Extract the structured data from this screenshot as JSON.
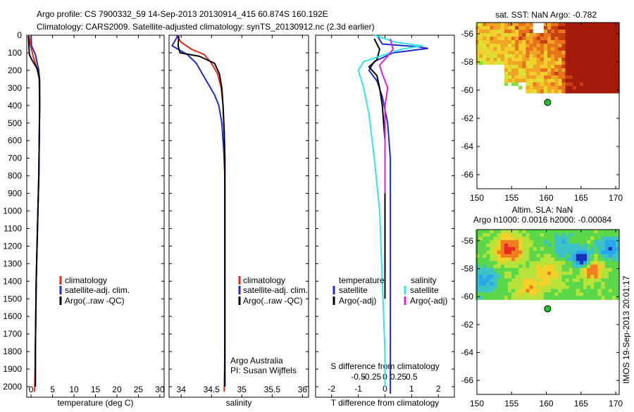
{
  "header": {
    "line1": "Argo profile: CS 7900332_59 14-Sep-2013 20130914_415 60.874S 160.192E",
    "line2": "Climatology: CARS2009. Satellite-adjusted climatology: synTS_20130912.nc (2.3d earlier)"
  },
  "side_stamp": "IMOS 19-Sep-2013 20:01:17",
  "legend_labels": {
    "climatology": "climatology",
    "satellite_adj": "satellite-adj. clim.",
    "argo_raw": "Argo(..raw -QC)",
    "temperature": "temperature",
    "salinity": "salinity",
    "satellite": "satellite",
    "argo_adj": "Argo(-adj)"
  },
  "colors": {
    "climatology": "#e8281e",
    "satellite_adj": "#1f2ad6",
    "argo": "#000000",
    "temp_diff_satellite": "#1f2ad6",
    "sal_diff_satellite": "#33e6e6",
    "sal_diff_argo": "#e020e0"
  },
  "annotations": {
    "argo_australia": "Argo Australia",
    "pi": "PI: Susan Wijffels"
  },
  "chart_data": [
    {
      "id": "temperature",
      "type": "line",
      "xlabel": "temperature (deg C)",
      "ylabel": "",
      "xlim": [
        -1,
        31
      ],
      "ylim": [
        2060,
        0
      ],
      "xticks": [
        0,
        5,
        10,
        15,
        20,
        25,
        30
      ],
      "xtick_labels": [
        "0",
        "5",
        "10",
        "15",
        "20",
        "25",
        "30"
      ],
      "yticks": [
        0,
        100,
        200,
        300,
        400,
        500,
        600,
        700,
        800,
        900,
        1000,
        1100,
        1200,
        1300,
        1400,
        1500,
        1600,
        1700,
        1800,
        1900,
        2000
      ],
      "ytick_labels": [
        "0",
        "100",
        "200",
        "300",
        "400",
        "500",
        "600",
        "700",
        "800",
        "900",
        "1000",
        "1100",
        "1200",
        "1300",
        "1400",
        "1500",
        "1600",
        "1700",
        "1800",
        "1900",
        "2000"
      ],
      "series": [
        {
          "name": "climatology",
          "key": "climatology",
          "x": [
            -0.5,
            -0.2,
            0.5,
            1.5,
            2.0,
            2.0,
            1.9,
            1.8,
            1.6,
            1.4,
            1.2,
            1.1,
            1.0,
            0.9,
            0.8
          ],
          "y": [
            0,
            50,
            120,
            200,
            260,
            400,
            600,
            800,
            1000,
            1200,
            1400,
            1600,
            1800,
            1950,
            2030
          ]
        },
        {
          "name": "satellite-adj. clim.",
          "key": "satellite_adj",
          "x": [
            0.0,
            0.1,
            1.0,
            1.8,
            2.0,
            2.0,
            1.9,
            1.8,
            1.6,
            1.4,
            1.2,
            1.1,
            1.0,
            1.0
          ],
          "y": [
            0,
            60,
            110,
            200,
            260,
            400,
            600,
            800,
            1000,
            1200,
            1400,
            1600,
            1800,
            2000
          ]
        },
        {
          "name": "Argo(..raw -QC)",
          "key": "argo",
          "x": [
            -0.6,
            -0.5,
            -0.4,
            0.2,
            1.4,
            1.9,
            2.0,
            1.9,
            1.8,
            1.6,
            1.4,
            1.2,
            1.1,
            1.0,
            1.0
          ],
          "y": [
            5,
            60,
            110,
            140,
            190,
            240,
            400,
            600,
            800,
            1000,
            1200,
            1400,
            1600,
            1800,
            2000
          ]
        }
      ]
    },
    {
      "id": "salinity",
      "type": "line",
      "xlabel": "salinity",
      "ylabel": "",
      "xlim": [
        33.8,
        36.1
      ],
      "ylim": [
        2060,
        0
      ],
      "xticks": [
        34,
        34.5,
        35,
        35.5,
        36
      ],
      "xtick_labels": [
        "34",
        "34.5",
        "35",
        "35.5",
        "36"
      ],
      "yticks": [
        0,
        100,
        200,
        300,
        400,
        500,
        600,
        700,
        800,
        900,
        1000,
        1100,
        1200,
        1300,
        1400,
        1500,
        1600,
        1700,
        1800,
        1900,
        2000
      ],
      "series": [
        {
          "name": "climatology",
          "key": "climatology",
          "x": [
            33.92,
            34.0,
            34.17,
            34.38,
            34.5,
            34.6,
            34.66,
            34.69,
            34.71,
            34.72,
            34.72,
            34.72,
            34.72,
            34.72,
            34.71
          ],
          "y": [
            0,
            40,
            80,
            110,
            160,
            220,
            300,
            400,
            550,
            700,
            900,
            1200,
            1500,
            1800,
            2030
          ]
        },
        {
          "name": "satellite-adj. clim.",
          "key": "satellite_adj",
          "x": [
            33.95,
            33.85,
            34.1,
            34.25,
            34.35,
            34.45,
            34.55,
            34.62,
            34.67,
            34.7,
            34.72,
            34.72,
            34.72,
            34.72,
            34.72
          ],
          "y": [
            0,
            60,
            110,
            160,
            220,
            280,
            340,
            400,
            500,
            650,
            800,
            1100,
            1400,
            1700,
            2000
          ]
        },
        {
          "name": "Argo(..raw -QC)",
          "key": "argo",
          "x": [
            33.96,
            33.95,
            33.98,
            34.3,
            34.55,
            34.63,
            34.67,
            34.69,
            34.71,
            34.72,
            34.72,
            34.72,
            34.72,
            34.72
          ],
          "y": [
            5,
            60,
            100,
            120,
            160,
            220,
            300,
            400,
            550,
            700,
            900,
            1200,
            1500,
            2000
          ]
        }
      ]
    },
    {
      "id": "difference",
      "type": "line",
      "xlabel": "T difference from climatology",
      "x2label": "S difference from climatology",
      "ylabel": "",
      "xlim": [
        -2.6,
        2.6
      ],
      "ylim": [
        2060,
        0
      ],
      "xticks": [
        -2,
        -1,
        0,
        1,
        2
      ],
      "xtick_labels": [
        "-2",
        "-1",
        "0",
        "1",
        "2"
      ],
      "x2ticks": [
        -1,
        -0.5,
        0,
        0.5,
        1
      ],
      "x2tick_labels": [
        "-0.5",
        "-0.25",
        "0",
        "0.25",
        "0.5"
      ],
      "yticks": [
        0,
        100,
        200,
        300,
        400,
        500,
        600,
        700,
        800,
        900,
        1000,
        1100,
        1200,
        1300,
        1400,
        1500,
        1600,
        1700,
        1800,
        1900,
        2000
      ],
      "series": [
        {
          "name": "temperature satellite",
          "key": "temp_diff_satellite",
          "x": [
            -0.3,
            -0.1,
            1.2,
            1.6,
            0.3,
            -0.4,
            -0.6,
            -0.3,
            -0.1,
            0.1,
            0.2,
            0.2,
            0.2,
            0.2,
            0.2,
            0.2,
            0.2
          ],
          "y": [
            0,
            50,
            65,
            75,
            100,
            150,
            200,
            260,
            350,
            500,
            700,
            900,
            1200,
            1500,
            1800,
            2000,
            2040
          ]
        },
        {
          "name": "temperature Argo(-adj)",
          "key": "argo",
          "x": [
            -0.4,
            -0.2,
            -0.3,
            -0.6,
            -0.3,
            -0.2,
            -0.1,
            0.0,
            0.0,
            0.0
          ],
          "y": [
            20,
            80,
            140,
            180,
            230,
            300,
            400,
            600,
            1000,
            1500
          ]
        },
        {
          "name": "salinity satellite",
          "key": "sal_diff_satellite",
          "x": [
            -0.4,
            0.4,
            1.4,
            0.6,
            -0.8,
            -1.0,
            -0.8,
            -0.6,
            -0.4,
            -0.2,
            -0.1,
            0.0,
            0.0
          ],
          "y": [
            0,
            40,
            60,
            80,
            150,
            200,
            300,
            450,
            700,
            1000,
            1400,
            1800,
            2000
          ]
        },
        {
          "name": "salinity Argo(-adj)",
          "key": "sal_diff_argo",
          "x": [
            0.2,
            0.3,
            0.1,
            -0.2,
            -0.1,
            0.1,
            0.0,
            0.0,
            0.0
          ],
          "y": [
            20,
            80,
            120,
            170,
            220,
            300,
            400,
            600,
            900
          ]
        }
      ]
    },
    {
      "id": "sst-map",
      "type": "heatmap",
      "title": "sat. SST: NaN Argo: -0.782",
      "xlim": [
        150,
        170.5
      ],
      "ylim": [
        -67,
        -55.2
      ],
      "xticks": [
        150,
        155,
        160,
        165,
        170
      ],
      "xtick_labels": [
        "150",
        "155",
        "160",
        "165",
        "170"
      ],
      "yticks": [
        -56,
        -58,
        -60,
        -62,
        -64,
        -66
      ],
      "ytick_labels": [
        "-56",
        "-58",
        "-60",
        "-62",
        "-64",
        "-66"
      ],
      "data_extent": {
        "lon": [
          149.8,
          170.5
        ],
        "lat": [
          -60.2,
          -55.2
        ]
      },
      "marker": {
        "lon": 160.19,
        "lat": -60.87
      }
    },
    {
      "id": "sla-map",
      "type": "heatmap",
      "title": "Altim. SLA: NaN",
      "subtitle": "Argo h1000: 0.0016 h2000: -0.00084",
      "xlim": [
        150,
        170.5
      ],
      "ylim": [
        -67,
        -55.2
      ],
      "xticks": [
        150,
        155,
        160,
        165,
        170
      ],
      "xtick_labels": [
        "150",
        "155",
        "160",
        "165",
        "170"
      ],
      "yticks": [
        -56,
        -58,
        -60,
        -62,
        -64,
        -66
      ],
      "ytick_labels": [
        "-56",
        "-58",
        "-60",
        "-62",
        "-64",
        "-66"
      ],
      "data_extent": {
        "lon": [
          149.8,
          170.5
        ],
        "lat": [
          -60.2,
          -55.2
        ]
      },
      "marker": {
        "lon": 160.19,
        "lat": -60.87
      }
    }
  ]
}
